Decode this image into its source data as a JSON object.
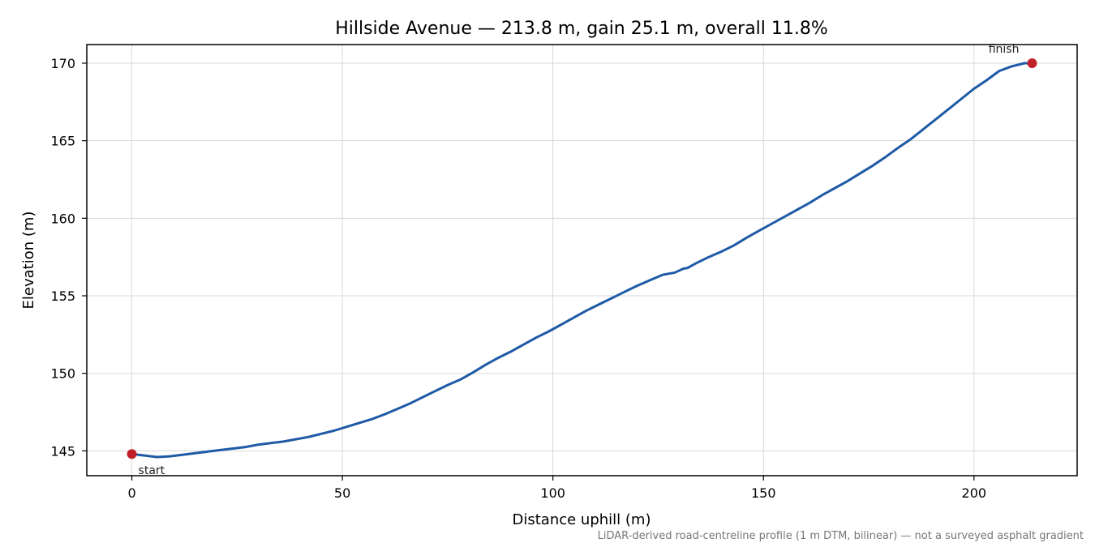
{
  "chart_data": {
    "type": "line",
    "title": "Hillside Avenue — 213.8 m, gain 25.1 m, overall 11.8%",
    "xlabel": "Distance uphill (m)",
    "ylabel": "Elevation (m)",
    "xlim": [
      -10.7,
      224.5
    ],
    "ylim": [
      143.4,
      171.2
    ],
    "xticks": [
      0,
      50,
      100,
      150,
      200
    ],
    "yticks": [
      145,
      150,
      155,
      160,
      165,
      170
    ],
    "xtick_labels": [
      "0",
      "50",
      "100",
      "150",
      "200"
    ],
    "ytick_labels": [
      "145",
      "150",
      "155",
      "160",
      "165",
      "170"
    ],
    "grid": true,
    "series": [
      {
        "color": "#1f5aa6",
        "x": [
          0,
          3,
          6,
          9,
          12,
          15,
          18,
          21,
          24,
          27,
          30,
          33,
          36,
          39,
          42,
          45,
          48,
          51,
          54,
          57,
          60,
          63,
          66,
          69,
          72,
          75,
          78,
          81,
          84,
          87,
          90,
          93,
          96,
          99,
          102,
          105,
          108,
          111,
          114,
          117,
          120,
          123,
          126,
          129,
          131,
          132,
          134,
          137,
          140,
          143,
          146,
          149,
          152,
          155,
          158,
          161,
          164,
          167,
          170,
          173,
          176,
          179,
          182,
          185,
          188,
          191,
          194,
          197,
          200,
          203,
          206,
          209,
          212,
          213.8
        ],
        "y": [
          144.8,
          144.7,
          144.6,
          144.65,
          144.75,
          144.85,
          144.95,
          145.05,
          145.15,
          145.25,
          145.4,
          145.5,
          145.6,
          145.75,
          145.9,
          146.1,
          146.3,
          146.55,
          146.8,
          147.05,
          147.35,
          147.7,
          148.05,
          148.45,
          148.85,
          149.25,
          149.6,
          150.05,
          150.55,
          151.0,
          151.4,
          151.85,
          152.3,
          152.7,
          153.15,
          153.6,
          154.05,
          154.45,
          154.85,
          155.25,
          155.65,
          156.0,
          156.35,
          156.5,
          156.75,
          156.8,
          157.1,
          157.5,
          157.85,
          158.25,
          158.75,
          159.2,
          159.65,
          160.1,
          160.55,
          161.0,
          161.5,
          161.95,
          162.4,
          162.9,
          163.4,
          163.95,
          164.55,
          165.1,
          165.75,
          166.4,
          167.05,
          167.7,
          168.35,
          168.9,
          169.5,
          169.8,
          170.0,
          170.0
        ]
      }
    ],
    "markers": [
      {
        "x": 0,
        "y": 144.8,
        "color": "#c0202a",
        "label": "start"
      },
      {
        "x": 213.8,
        "y": 170.0,
        "color": "#c0202a",
        "label": "finish"
      }
    ],
    "footnote": "LiDAR-derived road-centreline profile (1 m DTM, bilinear) — not a surveyed asphalt gradient"
  }
}
